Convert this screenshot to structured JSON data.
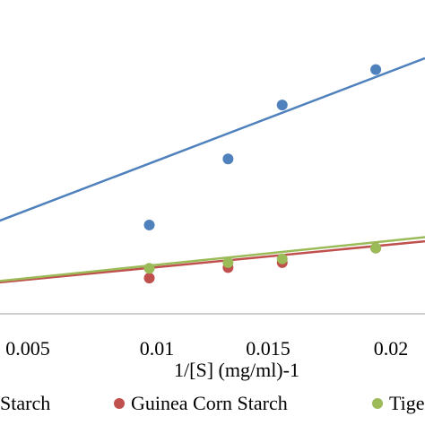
{
  "chart_data": {
    "type": "scatter",
    "title": "",
    "xlabel": "1/[S] (mg/ml)-1",
    "ylabel": "",
    "x_ticks": [
      "0.005",
      "0.01",
      "0.015",
      "0.02"
    ],
    "xlim": [
      0,
      0.0224
    ],
    "ylim": [
      0,
      1
    ],
    "grid": false,
    "legend_position": "bottom",
    "series": [
      {
        "name": "Starch",
        "color": "#4f81bd",
        "points": [
          [
            0.0112,
            0.328
          ],
          [
            0.0144,
            0.572
          ],
          [
            0.0166,
            0.771
          ],
          [
            0.0204,
            0.902
          ]
        ],
        "trend": [
          [
            0.0,
            0.166
          ],
          [
            0.0224,
            0.944
          ]
        ]
      },
      {
        "name": "Guinea Corn Starch",
        "color": "#c0504d",
        "points": [
          [
            0.0112,
            0.132
          ],
          [
            0.0144,
            0.171
          ],
          [
            0.0166,
            0.189
          ],
          [
            0.0204,
            0.243
          ]
        ],
        "trend": [
          [
            0.0,
            0.071
          ],
          [
            0.0224,
            0.268
          ]
        ]
      },
      {
        "name": "Tige",
        "color": "#9bbb59",
        "points": [
          [
            0.0112,
            0.168
          ],
          [
            0.0144,
            0.189
          ],
          [
            0.0166,
            0.203
          ],
          [
            0.0204,
            0.243
          ]
        ],
        "trend": [
          [
            0.0,
            0.073
          ],
          [
            0.0224,
            0.283
          ]
        ]
      }
    ]
  }
}
